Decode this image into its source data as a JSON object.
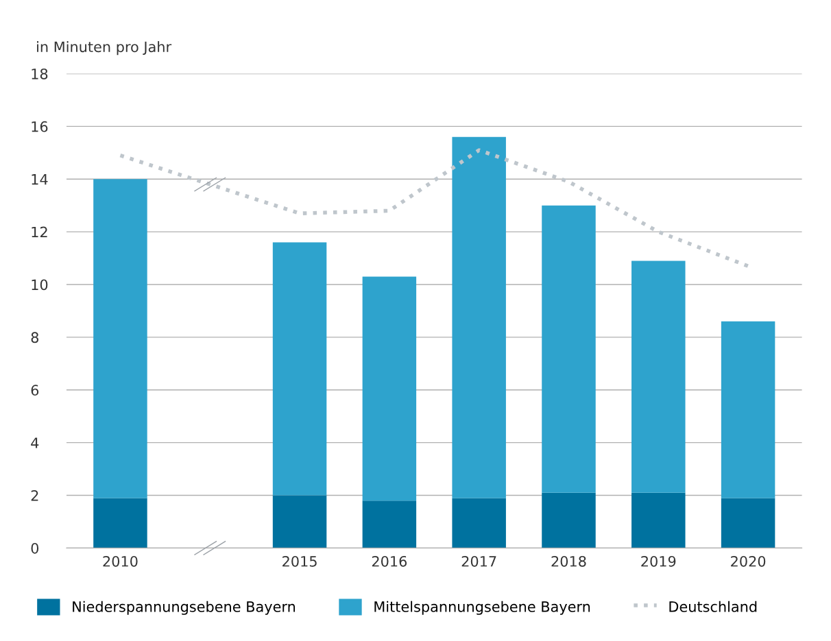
{
  "chart_data": {
    "type": "bar",
    "ylabel": "in Minuten pro Jahr",
    "stacked": true,
    "categories": [
      "2010",
      null,
      "2015",
      "2016",
      "2017",
      "2018",
      "2019",
      "2020"
    ],
    "series": [
      {
        "name": "Niederspannungsebene Bayern",
        "color": "#00729f",
        "values": [
          1.9,
          null,
          2.0,
          1.8,
          1.9,
          2.1,
          2.1,
          1.9
        ]
      },
      {
        "name": "Mittelspannungsebene Bayern",
        "color": "#2ea3cd",
        "values": [
          12.1,
          null,
          9.6,
          8.5,
          13.7,
          10.9,
          8.8,
          6.7
        ]
      },
      {
        "name": "Deutschland",
        "type": "line",
        "color": "#bfc6cc",
        "line_style": "dotted",
        "values": [
          14.9,
          null,
          12.7,
          12.8,
          15.1,
          13.9,
          12.0,
          10.7
        ]
      }
    ],
    "ylim": [
      0,
      18
    ],
    "yticks": [
      0,
      2,
      4,
      6,
      8,
      10,
      12,
      14,
      16,
      18
    ],
    "grid": "y",
    "legend": "bottom"
  }
}
